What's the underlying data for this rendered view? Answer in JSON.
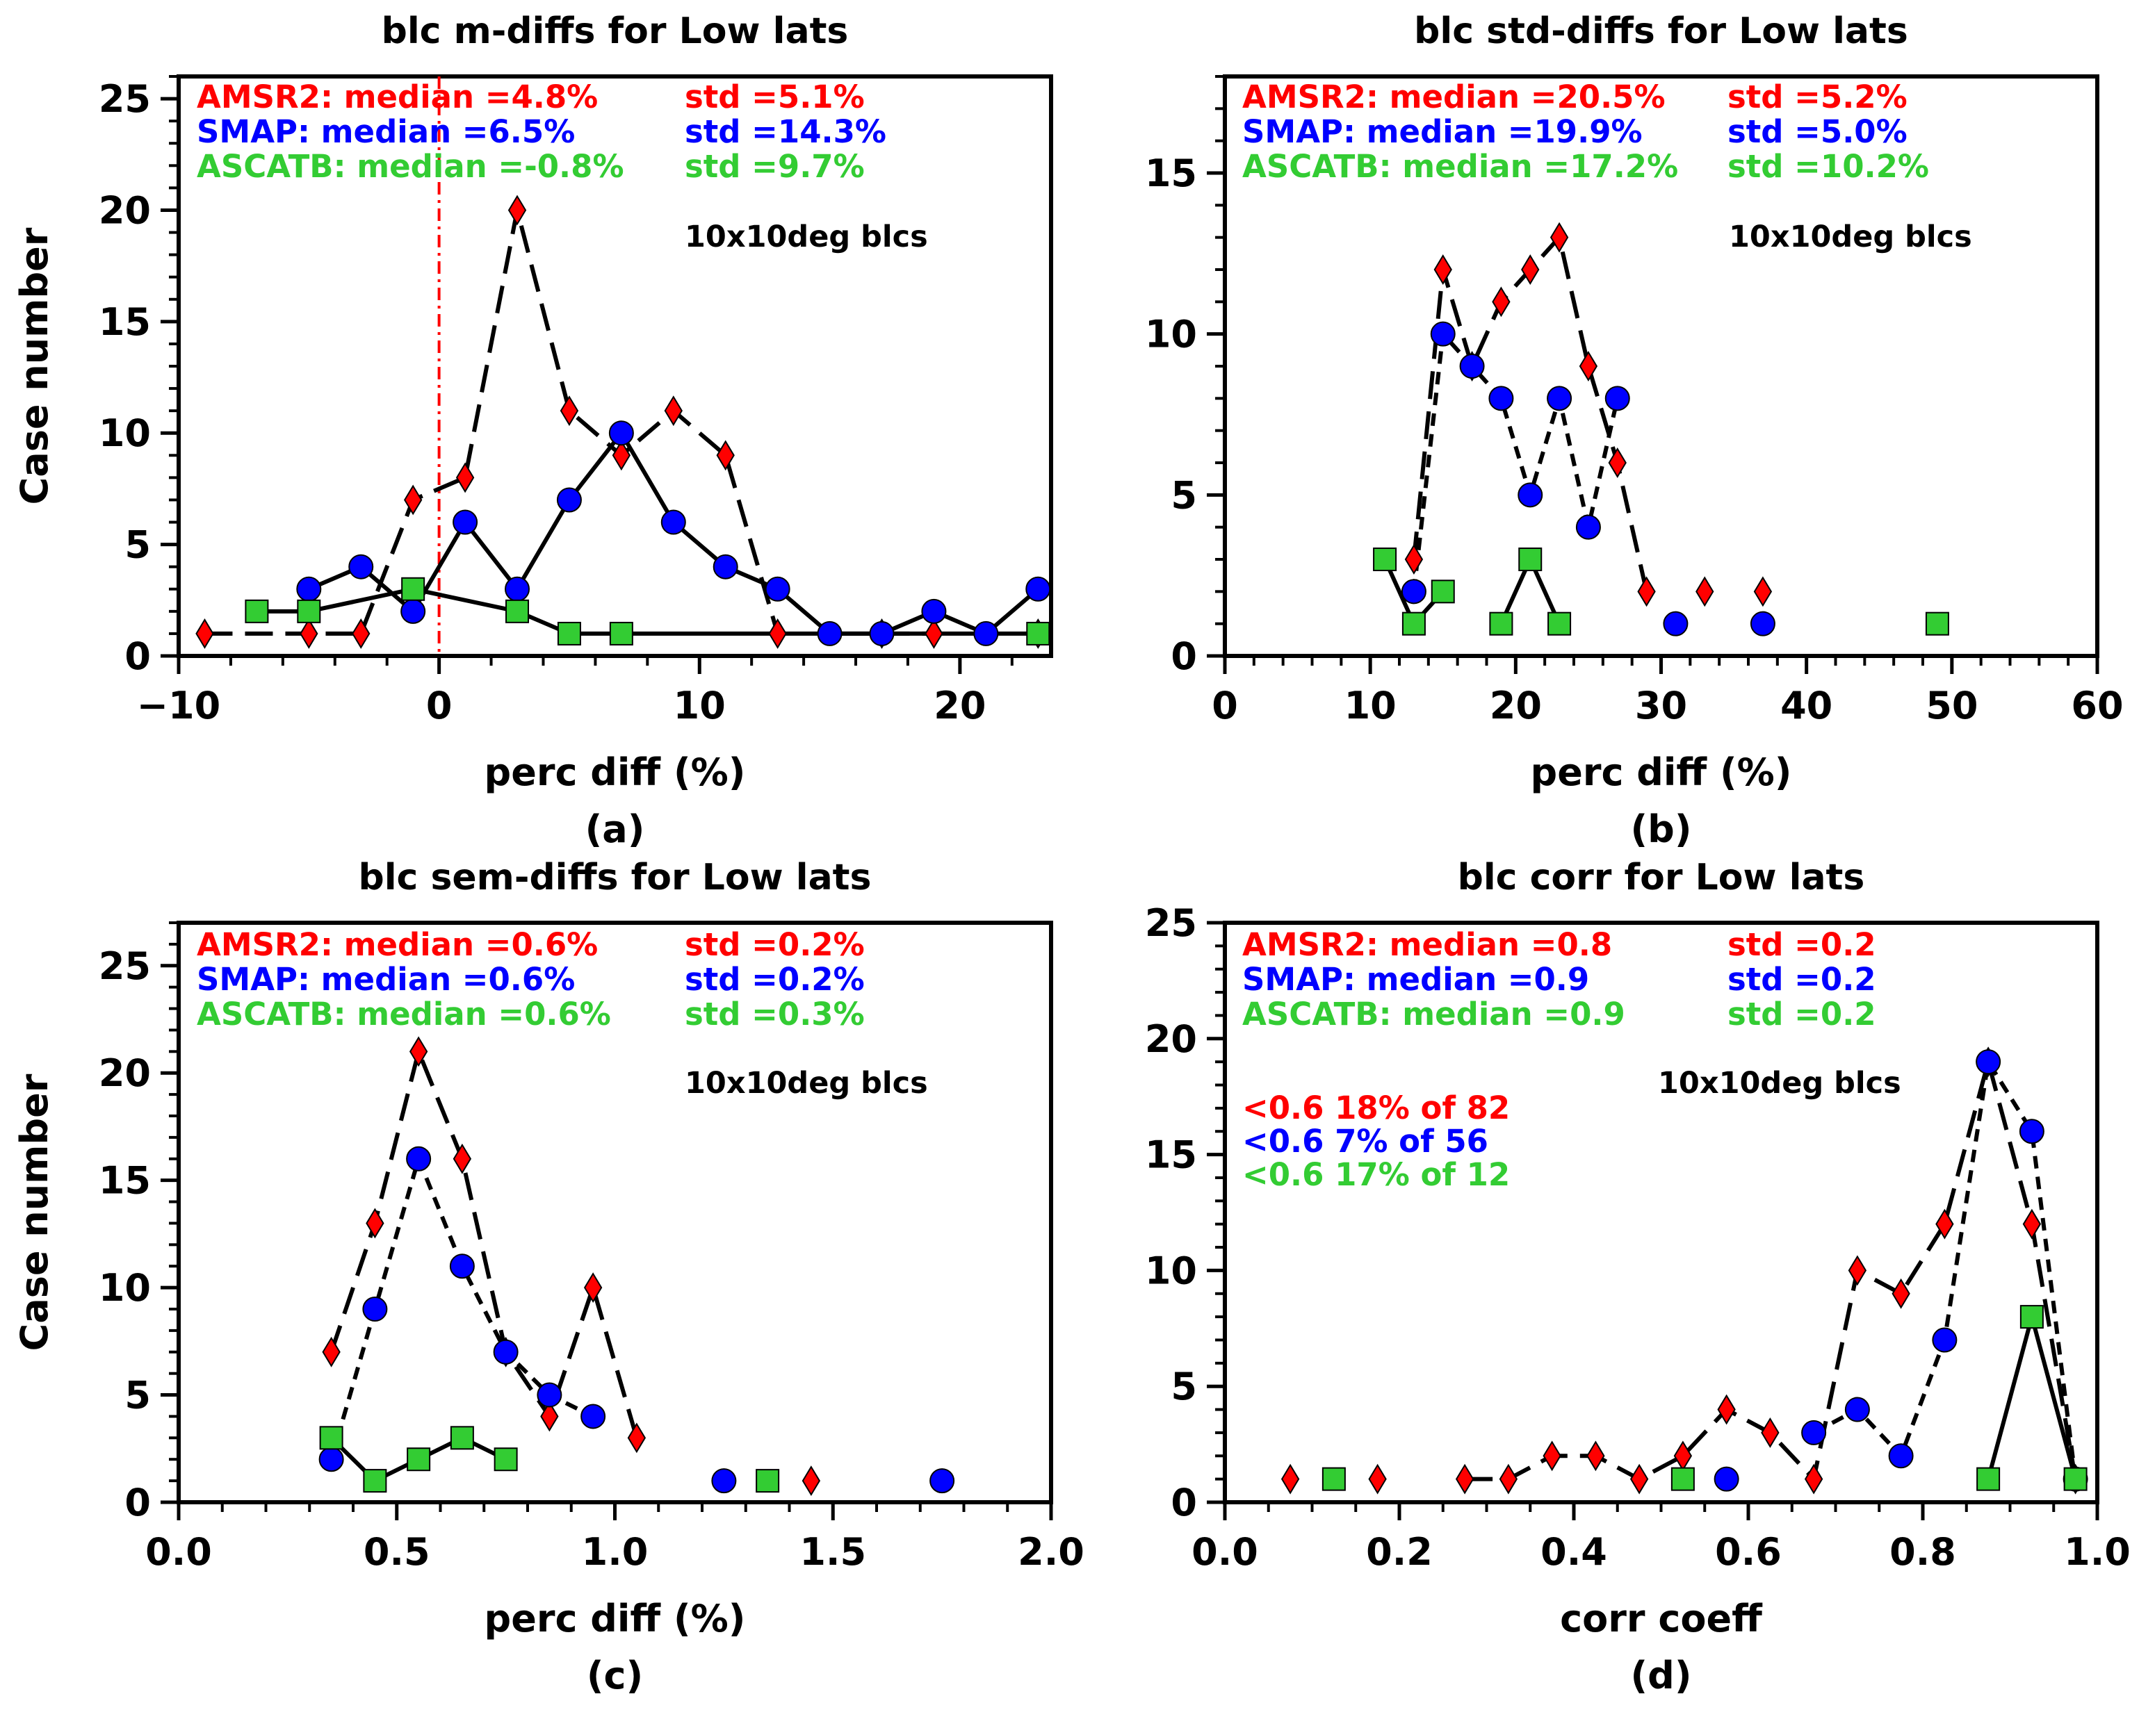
{
  "figure": {
    "shared_ylabel": "Case number",
    "box_label": "10x10deg blcs",
    "colors": {
      "amsr2": "#ff0000",
      "smap": "#0000ff",
      "ascatb": "#33cc33",
      "line": "#000000",
      "median_line": "#ff0000"
    }
  },
  "chart_data": [
    {
      "type": "line",
      "title": "blc m-diffs for Low lats",
      "xlabel": "perc diff (%)",
      "ylabel": "Case number",
      "panel_label": "(a)",
      "xlim": [
        -10,
        23.5
      ],
      "ylim": [
        0,
        26
      ],
      "xticks": [
        -10,
        0,
        10,
        20
      ],
      "xticklabels": [
        "−10",
        "0",
        "10",
        "20"
      ],
      "yticks": [
        0,
        5,
        10,
        15,
        20,
        25
      ],
      "yticklabels": [
        "0",
        "5",
        "10",
        "15",
        "20",
        "25"
      ],
      "x_minor_step": 2,
      "y_minor_step": 1,
      "median_line_x": 0,
      "stats": [
        {
          "median": "AMSR2: median =4.8%",
          "std": "std =5.1%",
          "color": "#ff0000"
        },
        {
          "median": "SMAP: median =6.5%",
          "std": "std =14.3%",
          "color": "#0000ff"
        },
        {
          "median": "ASCATB: median =-0.8%",
          "std": "std =9.7%",
          "color": "#33cc33"
        }
      ],
      "extra_text": [],
      "series": [
        {
          "name": "AMSR2",
          "marker": "diamond",
          "dash": "long",
          "color": "#ff0000",
          "x": [
            -9,
            -5,
            -3,
            -1,
            1,
            3,
            5,
            7,
            9,
            11,
            13,
            15,
            17,
            19,
            21,
            23
          ],
          "y": [
            1,
            1,
            1,
            7,
            8,
            20,
            11,
            9,
            11,
            9,
            1,
            null,
            1,
            1,
            null,
            1
          ]
        },
        {
          "name": "SMAP",
          "marker": "circle",
          "dash": "solid",
          "color": "#0000ff",
          "x": [
            -5,
            -3,
            -1,
            1,
            3,
            5,
            7,
            9,
            11,
            13,
            15,
            17,
            19,
            21,
            23
          ],
          "y": [
            3,
            4,
            2,
            6,
            3,
            7,
            10,
            6,
            4,
            3,
            1,
            1,
            2,
            1,
            3
          ]
        },
        {
          "name": "ASCATB",
          "marker": "square",
          "dash": "solid",
          "color": "#33cc33",
          "x": [
            -7,
            -5,
            -1,
            3,
            5,
            7,
            23
          ],
          "y": [
            2,
            2,
            3,
            2,
            1,
            1,
            1
          ]
        }
      ]
    },
    {
      "type": "line",
      "title": "blc std-diffs for Low lats",
      "xlabel": "perc diff (%)",
      "ylabel": "",
      "panel_label": "(b)",
      "xlim": [
        0,
        60
      ],
      "ylim": [
        0,
        18
      ],
      "xticks": [
        0,
        10,
        20,
        30,
        40,
        50,
        60
      ],
      "xticklabels": [
        "0",
        "10",
        "20",
        "30",
        "40",
        "50",
        "60"
      ],
      "yticks": [
        0,
        5,
        10,
        15
      ],
      "yticklabels": [
        "0",
        "5",
        "10",
        "15"
      ],
      "x_minor_step": 2,
      "y_minor_step": 1,
      "stats": [
        {
          "median": "AMSR2: median =20.5%",
          "std": "std =5.2%",
          "color": "#ff0000"
        },
        {
          "median": "SMAP: median =19.9%",
          "std": "std =5.0%",
          "color": "#0000ff"
        },
        {
          "median": "ASCATB: median =17.2%",
          "std": "std =10.2%",
          "color": "#33cc33"
        }
      ],
      "extra_text": [],
      "series": [
        {
          "name": "AMSR2",
          "marker": "diamond",
          "dash": "long",
          "color": "#ff0000",
          "x": [
            13,
            15,
            17,
            19,
            21,
            23,
            25,
            27,
            29,
            31,
            33,
            35,
            37
          ],
          "y": [
            3,
            12,
            9,
            11,
            12,
            13,
            9,
            6,
            2,
            null,
            2,
            null,
            2
          ]
        },
        {
          "name": "SMAP",
          "marker": "circle",
          "dash": "short",
          "color": "#0000ff",
          "x": [
            13,
            15,
            17,
            19,
            21,
            23,
            25,
            27,
            29,
            31,
            33,
            35,
            37
          ],
          "y": [
            2,
            10,
            9,
            8,
            5,
            8,
            4,
            8,
            null,
            1,
            null,
            null,
            1
          ]
        },
        {
          "name": "ASCATB",
          "marker": "square",
          "dash": "solid",
          "color": "#33cc33",
          "x": [
            11,
            13,
            15,
            17,
            19,
            21,
            23,
            25,
            27,
            29,
            31,
            33,
            35,
            37,
            39,
            41,
            43,
            45,
            47,
            49
          ],
          "y": [
            3,
            1,
            2,
            null,
            1,
            3,
            1,
            null,
            null,
            null,
            null,
            null,
            null,
            null,
            null,
            null,
            null,
            null,
            null,
            1
          ]
        }
      ]
    },
    {
      "type": "line",
      "title": "blc sem-diffs for Low lats",
      "xlabel": "perc diff (%)",
      "ylabel": "Case number",
      "panel_label": "(c)",
      "xlim": [
        0,
        2
      ],
      "ylim": [
        0,
        27
      ],
      "xticks": [
        0,
        0.5,
        1,
        1.5,
        2
      ],
      "xticklabels": [
        "0.0",
        "0.5",
        "1.0",
        "1.5",
        "2.0"
      ],
      "yticks": [
        0,
        5,
        10,
        15,
        20,
        25
      ],
      "yticklabels": [
        "0",
        "5",
        "10",
        "15",
        "20",
        "25"
      ],
      "x_minor_step": 0.1,
      "y_minor_step": 1,
      "stats": [
        {
          "median": "AMSR2: median =0.6%",
          "std": "std =0.2%",
          "color": "#ff0000"
        },
        {
          "median": "SMAP: median =0.6%",
          "std": "std =0.2%",
          "color": "#0000ff"
        },
        {
          "median": "ASCATB: median =0.6%",
          "std": "std =0.3%",
          "color": "#33cc33"
        }
      ],
      "extra_text": [],
      "series": [
        {
          "name": "AMSR2",
          "marker": "diamond",
          "dash": "long",
          "color": "#ff0000",
          "x": [
            0.35,
            0.45,
            0.55,
            0.65,
            0.75,
            0.85,
            0.95,
            1.05,
            1.15,
            1.25,
            1.35,
            1.45
          ],
          "y": [
            7,
            13,
            21,
            16,
            7,
            4,
            10,
            3,
            null,
            null,
            null,
            1
          ]
        },
        {
          "name": "SMAP",
          "marker": "circle",
          "dash": "short",
          "color": "#0000ff",
          "x": [
            0.35,
            0.45,
            0.55,
            0.65,
            0.75,
            0.85,
            0.95,
            1.05,
            1.15,
            1.25,
            1.35,
            1.45,
            1.55,
            1.65,
            1.75
          ],
          "y": [
            2,
            9,
            16,
            11,
            7,
            5,
            4,
            null,
            null,
            1,
            null,
            null,
            null,
            null,
            1
          ]
        },
        {
          "name": "ASCATB",
          "marker": "square",
          "dash": "solid",
          "color": "#33cc33",
          "x": [
            0.35,
            0.45,
            0.55,
            0.65,
            0.75,
            0.85,
            0.95,
            1.05,
            1.15,
            1.25,
            1.35
          ],
          "y": [
            3,
            1,
            2,
            3,
            2,
            null,
            null,
            null,
            null,
            null,
            1
          ]
        }
      ]
    },
    {
      "type": "line",
      "title": "blc corr for Low lats",
      "xlabel": "corr coeff",
      "ylabel": "",
      "panel_label": "(d)",
      "xlim": [
        0,
        1
      ],
      "ylim": [
        0,
        25
      ],
      "xticks": [
        0,
        0.2,
        0.4,
        0.6,
        0.8,
        1.0
      ],
      "xticklabels": [
        "0.0",
        "0.2",
        "0.4",
        "0.6",
        "0.8",
        "1.0"
      ],
      "yticks": [
        0,
        5,
        10,
        15,
        20,
        25
      ],
      "yticklabels": [
        "0",
        "5",
        "10",
        "15",
        "20",
        "25"
      ],
      "x_minor_step": 0.05,
      "y_minor_step": 1,
      "stats": [
        {
          "median": "AMSR2: median =0.8",
          "std": "std =0.2",
          "color": "#ff0000"
        },
        {
          "median": "SMAP: median =0.9",
          "std": "std =0.2",
          "color": "#0000ff"
        },
        {
          "median": "ASCATB: median =0.9",
          "std": "std =0.2",
          "color": "#33cc33"
        }
      ],
      "extra_text": [
        {
          "text": "<0.6 18% of 82",
          "color": "#ff0000"
        },
        {
          "text": "<0.6 7% of 56",
          "color": "#0000ff"
        },
        {
          "text": "<0.6 17% of 12",
          "color": "#33cc33"
        }
      ],
      "series": [
        {
          "name": "AMSR2",
          "marker": "diamond",
          "dash": "long",
          "color": "#ff0000",
          "x": [
            0.075,
            0.125,
            0.175,
            0.225,
            0.275,
            0.325,
            0.375,
            0.425,
            0.475,
            0.525,
            0.575,
            0.625,
            0.675,
            0.725,
            0.775,
            0.825,
            0.875,
            0.925,
            0.975
          ],
          "y": [
            1,
            null,
            1,
            null,
            1,
            1,
            2,
            2,
            1,
            2,
            4,
            3,
            1,
            10,
            9,
            12,
            19,
            12,
            1
          ]
        },
        {
          "name": "SMAP",
          "marker": "circle",
          "dash": "short",
          "color": "#0000ff",
          "x": [
            0.575,
            0.625,
            0.675,
            0.725,
            0.775,
            0.825,
            0.875,
            0.925,
            0.975
          ],
          "y": [
            1,
            null,
            3,
            4,
            2,
            7,
            19,
            16,
            1
          ]
        },
        {
          "name": "ASCATB",
          "marker": "square",
          "dash": "solid",
          "color": "#33cc33",
          "x": [
            0.125,
            0.175,
            0.225,
            0.275,
            0.325,
            0.375,
            0.425,
            0.475,
            0.525,
            0.575,
            0.625,
            0.675,
            0.725,
            0.775,
            0.825,
            0.875,
            0.925,
            0.975
          ],
          "y": [
            1,
            null,
            null,
            null,
            null,
            null,
            null,
            null,
            1,
            null,
            null,
            null,
            null,
            null,
            null,
            1,
            8,
            1
          ]
        }
      ]
    }
  ]
}
